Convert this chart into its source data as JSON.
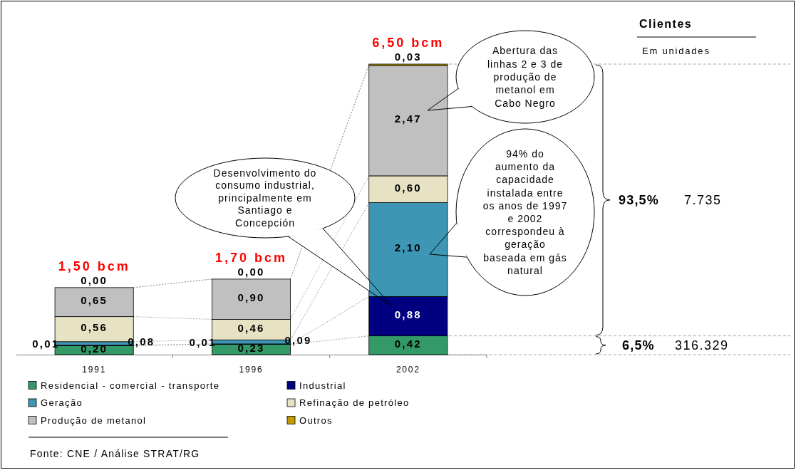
{
  "chart_data": {
    "type": "bar",
    "stacked": true,
    "categories": [
      "1991",
      "1996",
      "2002"
    ],
    "series": [
      {
        "name": "Residencial - comercial - transporte",
        "color": "#339966",
        "values": [
          0.2,
          0.23,
          0.42
        ],
        "value_labels": [
          "0,20",
          "0,23",
          "0,42"
        ]
      },
      {
        "name": "Industrial",
        "color": "#000080",
        "values": [
          0.01,
          0.01,
          0.88
        ],
        "value_labels": [
          "0,01",
          "0,01",
          "0,88"
        ]
      },
      {
        "name": "Geração",
        "color": "#3c96b4",
        "values": [
          0.08,
          0.09,
          2.1
        ],
        "value_labels": [
          "0,08",
          "0,09",
          "2,10"
        ]
      },
      {
        "name": "Refinação de petróleo",
        "color": "#e6e2c3",
        "values": [
          0.56,
          0.46,
          0.6
        ],
        "value_labels": [
          "0,56",
          "0,46",
          "0,60"
        ]
      },
      {
        "name": "Produção de metanol",
        "color": "#c0c0c0",
        "values": [
          0.65,
          0.9,
          2.47
        ],
        "value_labels": [
          "0,65",
          "0,90",
          "2,47"
        ]
      },
      {
        "name": "Outros",
        "color": "#c09c00",
        "values": [
          0.0,
          0.0,
          0.03
        ],
        "value_labels": [
          "0,00",
          "0,00",
          "0,03"
        ]
      }
    ],
    "totals": [
      "1,50 bcm",
      "1,70 bcm",
      "6,50 bcm"
    ],
    "legend": "bottom",
    "tick_labels": "x",
    "ref_lines": [
      {
        "axis": "y",
        "value": 0.42,
        "color": "#a6a6a6",
        "line_style": "dashed"
      }
    ],
    "annotations": [
      "Desenvolvimento do consumo industrial, principalmente em Santiago e Concepción",
      "Abertura das linhas 2 e 3 de produção de metanol em Cabo Negro",
      "94% do aumento da capacidade instalada entre os anos de 1997 e 2002 correspondeu à geração baseada em gás natural",
      "Clientes",
      "Em unidades",
      "93,5%",
      "7.735",
      "6,5%",
      "316.329",
      "Fonte: CNE / Análise STRAT/RG"
    ]
  }
}
